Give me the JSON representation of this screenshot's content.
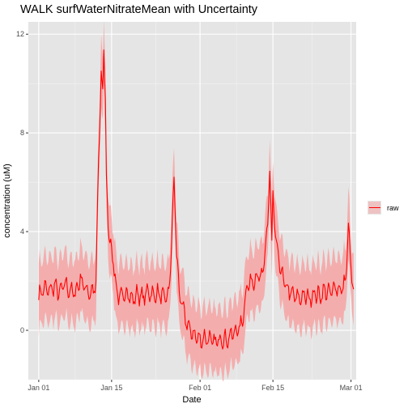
{
  "chart_data": {
    "type": "line",
    "title": "WALK surfWaterNitrateMean with Uncertainty",
    "xlabel": "Date",
    "ylabel": "concentration (uM)",
    "xlim": [
      "2019-12-30",
      "2020-03-02"
    ],
    "ylim": [
      -2,
      12.5
    ],
    "x_ticks": [
      {
        "date": "2020-01-01",
        "label": "Jan 01"
      },
      {
        "date": "2020-01-15",
        "label": "Jan 15"
      },
      {
        "date": "2020-02-01",
        "label": "Feb 01"
      },
      {
        "date": "2020-02-15",
        "label": "Feb 15"
      },
      {
        "date": "2020-03-01",
        "label": "Mar 01"
      }
    ],
    "y_ticks": [
      0,
      4,
      8,
      12
    ],
    "grid": true,
    "legend": {
      "position": "right",
      "entries": [
        "raw"
      ]
    },
    "colors": {
      "line": "#ff0000",
      "ribbon": "#f4aaaa",
      "panel": "#e5e5e5",
      "grid": "#ffffff"
    },
    "uncertainty_halfwidth": 1.3,
    "series": [
      {
        "name": "raw",
        "points": [
          [
            "2020-01-01",
            1.4
          ],
          [
            "2020-01-02",
            1.7
          ],
          [
            "2020-01-03",
            1.6
          ],
          [
            "2020-01-04",
            1.8
          ],
          [
            "2020-01-05",
            1.5
          ],
          [
            "2020-01-06",
            1.9
          ],
          [
            "2020-01-07",
            1.6
          ],
          [
            "2020-01-08",
            1.5
          ],
          [
            "2020-01-09",
            2.1
          ],
          [
            "2020-01-10",
            1.7
          ],
          [
            "2020-01-11",
            1.5
          ],
          [
            "2020-01-12",
            1.8
          ],
          [
            "2020-01-12.5",
            7.0
          ],
          [
            "2020-01-13",
            10.3
          ],
          [
            "2020-01-13.3",
            9.5
          ],
          [
            "2020-01-13.5",
            11.6
          ],
          [
            "2020-01-13.8",
            9.4
          ],
          [
            "2020-01-14",
            6.0
          ],
          [
            "2020-01-14.5",
            3.8
          ],
          [
            "2020-01-15",
            3.3
          ],
          [
            "2020-01-15.5",
            2.5
          ],
          [
            "2020-01-16",
            1.5
          ],
          [
            "2020-01-17",
            1.3
          ],
          [
            "2020-01-18",
            1.6
          ],
          [
            "2020-01-19",
            1.2
          ],
          [
            "2020-01-20",
            1.5
          ],
          [
            "2020-01-21",
            1.3
          ],
          [
            "2020-01-22",
            1.6
          ],
          [
            "2020-01-23",
            1.4
          ],
          [
            "2020-01-24",
            1.5
          ],
          [
            "2020-01-25",
            1.3
          ],
          [
            "2020-01-26",
            1.4
          ],
          [
            "2020-01-26.5",
            3.5
          ],
          [
            "2020-01-27",
            6.1
          ],
          [
            "2020-01-27.5",
            3.2
          ],
          [
            "2020-01-28",
            1.5
          ],
          [
            "2020-01-29",
            0.6
          ],
          [
            "2020-01-30",
            0.0
          ],
          [
            "2020-01-31",
            -0.2
          ],
          [
            "2020-02-01",
            -0.4
          ],
          [
            "2020-02-02",
            -0.3
          ],
          [
            "2020-02-03",
            -0.4
          ],
          [
            "2020-02-04",
            -0.5
          ],
          [
            "2020-02-05",
            -0.3
          ],
          [
            "2020-02-06",
            -0.4
          ],
          [
            "2020-02-07",
            -0.2
          ],
          [
            "2020-02-08",
            0.0
          ],
          [
            "2020-02-09",
            0.2
          ],
          [
            "2020-02-10",
            1.8
          ],
          [
            "2020-02-11",
            2.0
          ],
          [
            "2020-02-12",
            2.2
          ],
          [
            "2020-02-13",
            2.1
          ],
          [
            "2020-02-13.5",
            3.3
          ],
          [
            "2020-02-14",
            4.2
          ],
          [
            "2020-02-14.4",
            6.7
          ],
          [
            "2020-02-14.8",
            3.4
          ],
          [
            "2020-02-15",
            5.5
          ],
          [
            "2020-02-15.5",
            3.7
          ],
          [
            "2020-02-16",
            3.0
          ],
          [
            "2020-02-17",
            2.0
          ],
          [
            "2020-02-18",
            1.6
          ],
          [
            "2020-02-19",
            1.4
          ],
          [
            "2020-02-20",
            1.3
          ],
          [
            "2020-02-21",
            1.4
          ],
          [
            "2020-02-22",
            1.3
          ],
          [
            "2020-02-23",
            1.5
          ],
          [
            "2020-02-24",
            1.4
          ],
          [
            "2020-02-25",
            1.6
          ],
          [
            "2020-02-26",
            1.5
          ],
          [
            "2020-02-27",
            1.8
          ],
          [
            "2020-02-28",
            1.6
          ],
          [
            "2020-02-29",
            2.0
          ],
          [
            "2020-02-29.5",
            4.3
          ],
          [
            "2020-03-01",
            2.4
          ],
          [
            "2020-03-01.5",
            1.7
          ]
        ]
      }
    ]
  }
}
